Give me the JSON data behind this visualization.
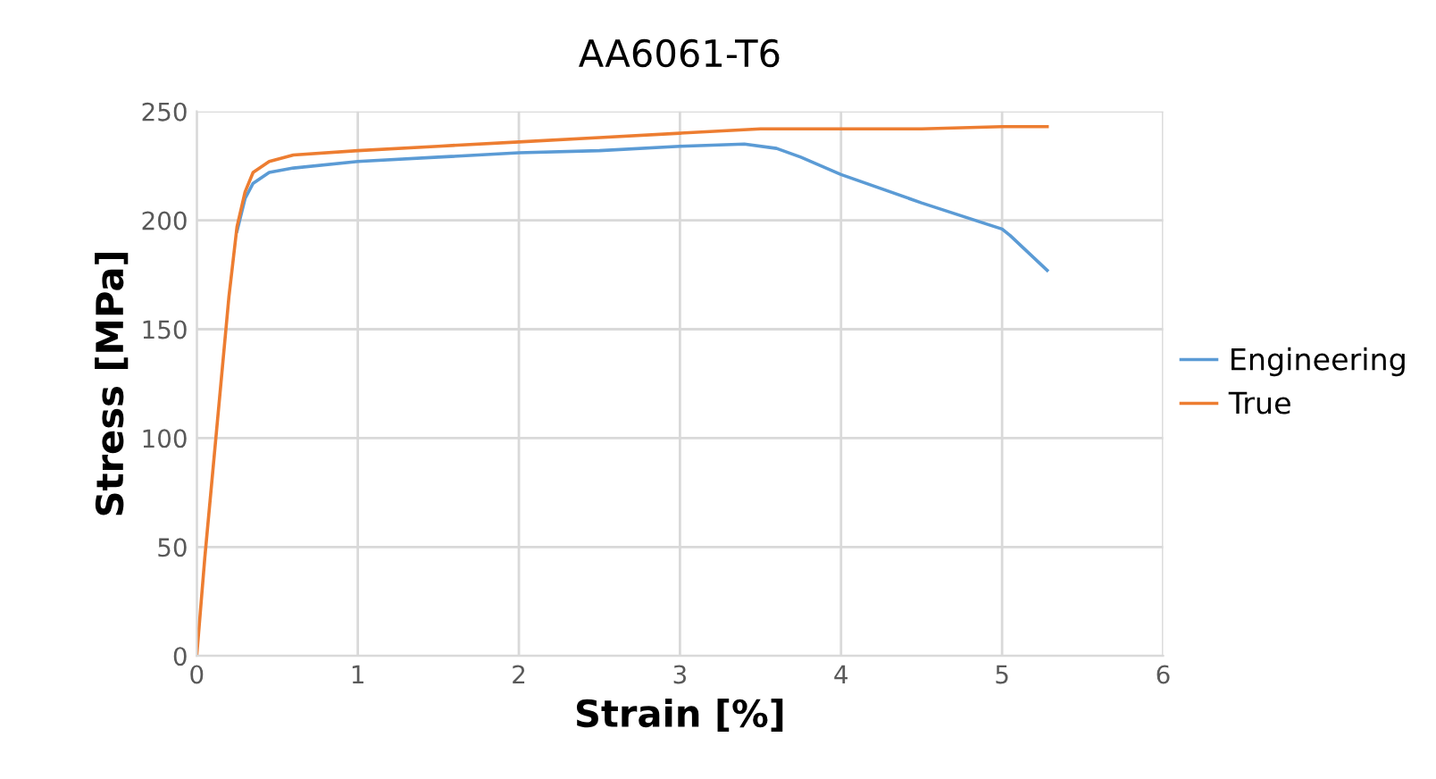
{
  "chart_data": {
    "type": "line",
    "title": "AA6061-T6",
    "xlabel": "Strain [%]",
    "ylabel": "Stress [MPa]",
    "xlim": [
      0,
      6
    ],
    "xticks": [
      0,
      1,
      2,
      3,
      4,
      5,
      6
    ],
    "ylim": [
      0,
      250
    ],
    "yticks": [
      0,
      50,
      100,
      150,
      200,
      250
    ],
    "grid": true,
    "legend": "right",
    "marker": "none",
    "line_style": "solid",
    "series": [
      {
        "name": "Engineering",
        "color": "#5b9bd5",
        "x": [
          0.25,
          0.3,
          0.35,
          0.45,
          0.6,
          1,
          1.5,
          2,
          2.5,
          3,
          3.4,
          3.6,
          3.75,
          4,
          4.5,
          5,
          5.05,
          5.28
        ],
        "values": [
          195,
          210,
          217,
          222,
          224,
          227,
          229,
          231,
          232,
          234,
          235,
          233,
          229,
          221,
          208,
          196,
          193,
          177
        ]
      },
      {
        "name": "True",
        "color": "#ed7d31",
        "x": [
          0,
          0.05,
          0.1,
          0.15,
          0.2,
          0.25,
          0.3,
          0.35,
          0.45,
          0.6,
          1,
          1.5,
          2,
          2.5,
          3,
          3.5,
          4,
          4.5,
          5,
          5.28
        ],
        "values": [
          0,
          45,
          85,
          125,
          165,
          197,
          213,
          222,
          227,
          230,
          232,
          234,
          236,
          238,
          240,
          242,
          242,
          242,
          243,
          243
        ]
      }
    ]
  }
}
